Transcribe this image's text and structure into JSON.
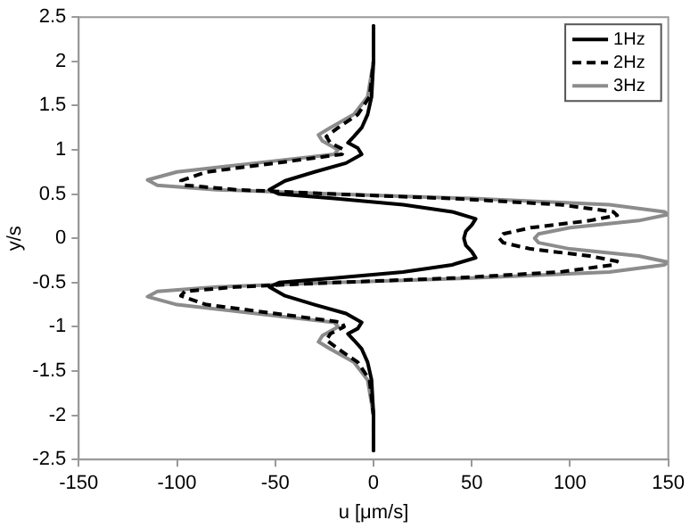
{
  "chart_data": {
    "type": "line",
    "xlabel": "u [μm/s]",
    "ylabel": "y/s",
    "xlim": [
      -150,
      150
    ],
    "xticks": [
      -150,
      -100,
      -50,
      0,
      50,
      100,
      150
    ],
    "ylim": [
      -2.5,
      2.5
    ],
    "yticks": [
      -2.5,
      -2,
      -1.5,
      -1,
      -0.5,
      0,
      0.5,
      1,
      1.5,
      2,
      2.5
    ],
    "grid": false,
    "legend": "top right",
    "marker": "none",
    "series": [
      {
        "name": "1Hz",
        "color": "#000000",
        "line_style": "solid",
        "x": [
          0,
          0,
          -1,
          -3,
          -6,
          -10,
          -13,
          -8,
          -6,
          -14,
          -30,
          -45,
          -53,
          -48,
          -20,
          15,
          40,
          52,
          50,
          47,
          46,
          47,
          50,
          52,
          40,
          15,
          -20,
          -48,
          -53,
          -45,
          -30,
          -14,
          -6,
          -8,
          -13,
          -10,
          -6,
          -3,
          -1,
          0,
          0
        ],
        "values": [
          2.4,
          2.0,
          1.6,
          1.4,
          1.25,
          1.15,
          1.08,
          1.02,
          0.95,
          0.85,
          0.75,
          0.65,
          0.55,
          0.5,
          0.45,
          0.38,
          0.3,
          0.22,
          0.15,
          0.08,
          0,
          -0.08,
          -0.15,
          -0.22,
          -0.3,
          -0.38,
          -0.45,
          -0.5,
          -0.55,
          -0.65,
          -0.75,
          -0.85,
          -0.95,
          -1.02,
          -1.08,
          -1.15,
          -1.25,
          -1.4,
          -1.6,
          -2.0,
          -2.4
        ]
      },
      {
        "name": "2Hz",
        "color": "#000000",
        "line_style": "dashed",
        "x": [
          0,
          0,
          -2,
          -8,
          -18,
          -24,
          -22,
          -15,
          -16,
          -50,
          -85,
          -98,
          -96,
          -70,
          -20,
          40,
          95,
          122,
          124,
          110,
          80,
          66,
          64,
          66,
          80,
          110,
          124,
          122,
          95,
          40,
          -20,
          -70,
          -96,
          -98,
          -85,
          -50,
          -16,
          -15,
          -22,
          -24,
          -18,
          -8,
          -2,
          0,
          0
        ],
        "values": [
          2.4,
          2.0,
          1.6,
          1.4,
          1.25,
          1.15,
          1.08,
          1.0,
          0.95,
          0.85,
          0.75,
          0.65,
          0.6,
          0.55,
          0.5,
          0.45,
          0.38,
          0.3,
          0.26,
          0.2,
          0.12,
          0.05,
          0,
          -0.05,
          -0.12,
          -0.2,
          -0.26,
          -0.3,
          -0.38,
          -0.45,
          -0.5,
          -0.55,
          -0.6,
          -0.65,
          -0.75,
          -0.85,
          -0.95,
          -1.0,
          -1.08,
          -1.15,
          -1.25,
          -1.4,
          -1.6,
          -2.0,
          -2.4
        ]
      },
      {
        "name": "3Hz",
        "color": "#8c8c8c",
        "line_style": "solid",
        "x": [
          0,
          0,
          -3,
          -10,
          -22,
          -28,
          -26,
          -18,
          -20,
          -60,
          -100,
          -115,
          -110,
          -80,
          -20,
          50,
          120,
          148,
          150,
          135,
          100,
          84,
          82,
          84,
          100,
          135,
          150,
          148,
          120,
          50,
          -20,
          -80,
          -110,
          -115,
          -100,
          -60,
          -20,
          -18,
          -26,
          -28,
          -22,
          -10,
          -3,
          0,
          0
        ],
        "values": [
          2.4,
          2.0,
          1.6,
          1.4,
          1.25,
          1.17,
          1.1,
          1.0,
          0.95,
          0.85,
          0.75,
          0.66,
          0.6,
          0.55,
          0.5,
          0.45,
          0.38,
          0.3,
          0.27,
          0.2,
          0.12,
          0.05,
          0,
          -0.05,
          -0.12,
          -0.2,
          -0.27,
          -0.3,
          -0.38,
          -0.45,
          -0.5,
          -0.55,
          -0.6,
          -0.66,
          -0.75,
          -0.85,
          -0.95,
          -1.0,
          -1.1,
          -1.17,
          -1.25,
          -1.4,
          -1.6,
          -2.0,
          -2.4
        ]
      }
    ]
  }
}
